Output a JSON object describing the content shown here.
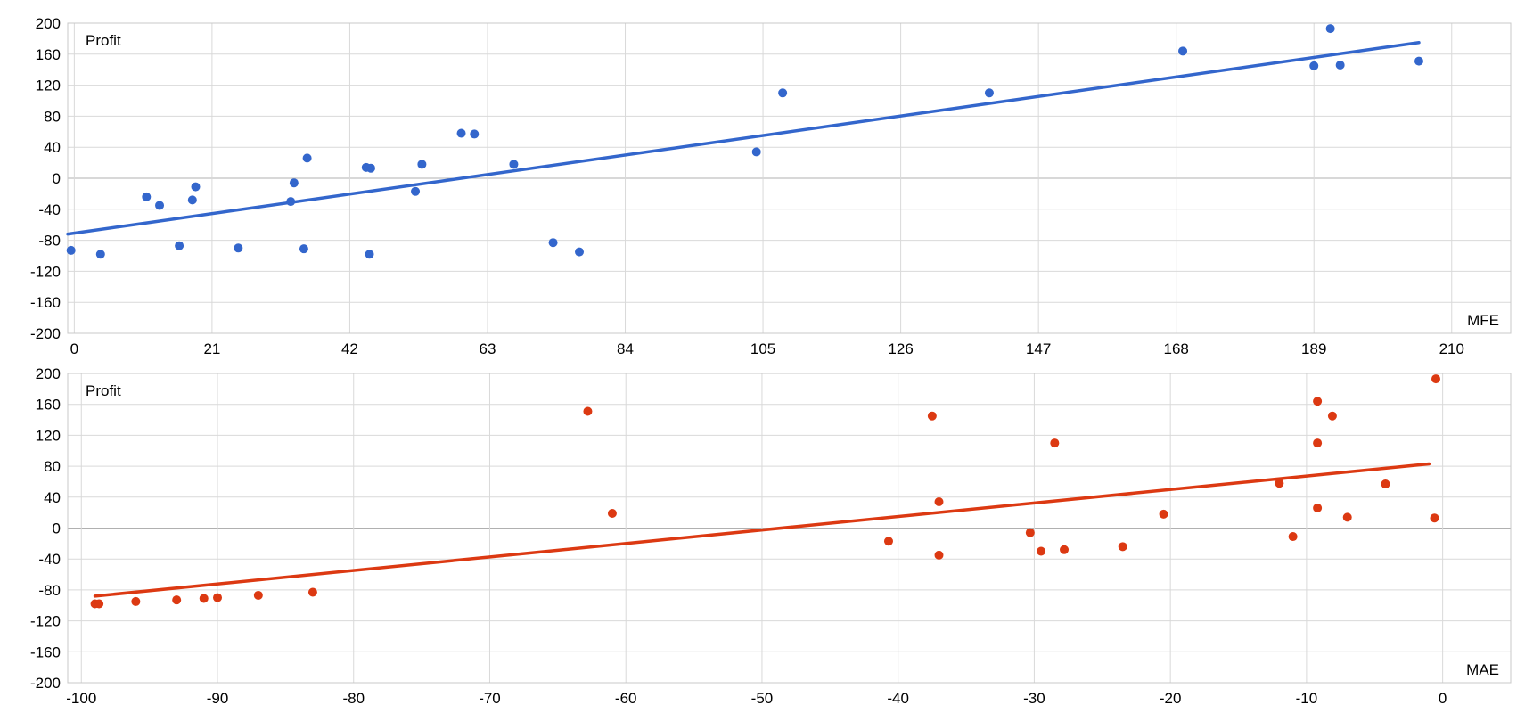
{
  "chart_data": [
    {
      "type": "scatter",
      "ylabel": "Profit",
      "xlabel": "MFE",
      "xlim": [
        -1,
        219
      ],
      "ylim": [
        -200,
        200
      ],
      "x_ticks": [
        0,
        21,
        42,
        63,
        84,
        105,
        126,
        147,
        168,
        189,
        210
      ],
      "y_ticks": [
        200,
        160,
        120,
        80,
        40,
        0,
        -40,
        -80,
        -120,
        -160,
        -200
      ],
      "grid": true,
      "color": "#3366cc",
      "trendline": {
        "x": [
          -1,
          205
        ],
        "y": [
          -72,
          175
        ]
      },
      "points": [
        [
          -0.5,
          -93
        ],
        [
          4,
          -98
        ],
        [
          11,
          -24
        ],
        [
          13,
          -35
        ],
        [
          16,
          -87
        ],
        [
          18,
          -28
        ],
        [
          18.5,
          -11
        ],
        [
          25,
          -90
        ],
        [
          33,
          -30
        ],
        [
          33.5,
          -6
        ],
        [
          35,
          -91
        ],
        [
          35.5,
          26
        ],
        [
          44.5,
          14
        ],
        [
          45,
          -98
        ],
        [
          45.2,
          13
        ],
        [
          52,
          -17
        ],
        [
          53,
          18
        ],
        [
          59,
          58
        ],
        [
          61,
          57
        ],
        [
          67,
          18
        ],
        [
          73,
          -83
        ],
        [
          77,
          -95
        ],
        [
          104,
          34
        ],
        [
          108,
          110
        ],
        [
          139.5,
          110
        ],
        [
          169,
          164
        ],
        [
          189,
          145
        ],
        [
          191.5,
          193
        ],
        [
          193,
          146
        ],
        [
          205,
          151
        ]
      ]
    },
    {
      "type": "scatter",
      "ylabel": "Profit",
      "xlabel": "MAE",
      "xlim": [
        -101,
        5
      ],
      "ylim": [
        -200,
        200
      ],
      "x_ticks": [
        -100,
        -90,
        -80,
        -70,
        -60,
        -50,
        -40,
        -30,
        -20,
        -10,
        0
      ],
      "y_ticks": [
        200,
        160,
        120,
        80,
        40,
        0,
        -40,
        -80,
        -120,
        -160,
        -200
      ],
      "grid": true,
      "color": "#dc3912",
      "trendline": {
        "x": [
          -99,
          -1
        ],
        "y": [
          -88,
          83
        ]
      },
      "points": [
        [
          -99,
          -98
        ],
        [
          -98.7,
          -98
        ],
        [
          -96,
          -95
        ],
        [
          -93,
          -93
        ],
        [
          -91,
          -91
        ],
        [
          -90,
          -90
        ],
        [
          -87,
          -87
        ],
        [
          -83,
          -83
        ],
        [
          -62.8,
          151
        ],
        [
          -61,
          19
        ],
        [
          -40.7,
          -17
        ],
        [
          -37.5,
          145
        ],
        [
          -37,
          34
        ],
        [
          -37,
          -35
        ],
        [
          -30.3,
          -6
        ],
        [
          -29.5,
          -30
        ],
        [
          -28.5,
          110
        ],
        [
          -27.8,
          -28
        ],
        [
          -23.5,
          -24
        ],
        [
          -20.5,
          18
        ],
        [
          -12,
          58
        ],
        [
          -11,
          -11
        ],
        [
          -9.2,
          164
        ],
        [
          -9.2,
          110
        ],
        [
          -9.2,
          26
        ],
        [
          -8.1,
          145
        ],
        [
          -7,
          14
        ],
        [
          -4.2,
          57
        ],
        [
          -0.5,
          193
        ],
        [
          -0.6,
          13
        ]
      ]
    }
  ]
}
